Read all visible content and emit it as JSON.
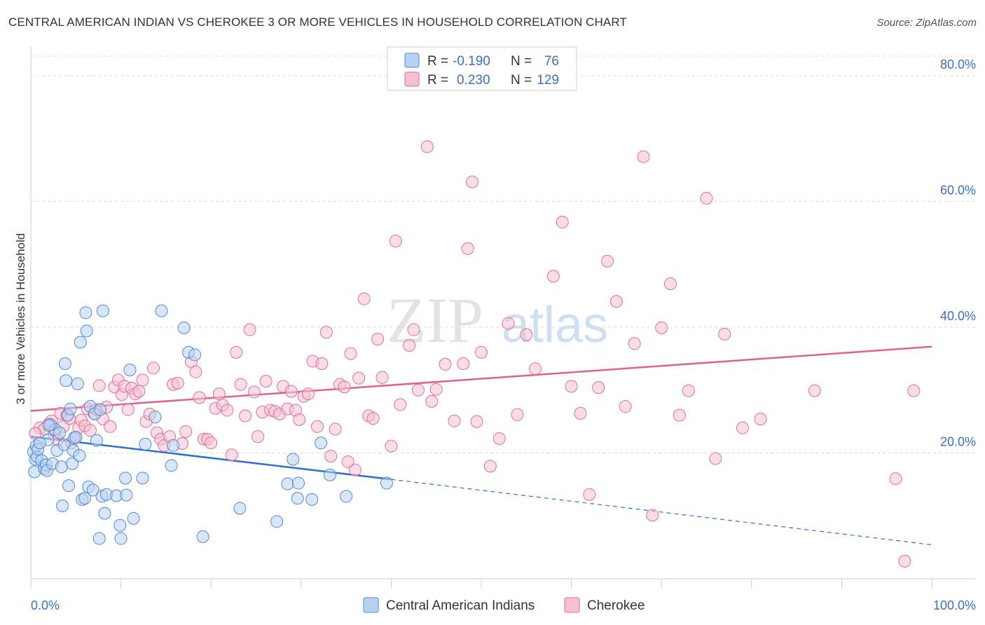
{
  "title": "CENTRAL AMERICAN INDIAN VS CHEROKEE 3 OR MORE VEHICLES IN HOUSEHOLD CORRELATION CHART",
  "source": "Source: ZipAtlas.com",
  "watermark": {
    "zip": "ZIP",
    "atlas": "atlas"
  },
  "colors": {
    "blue": "#4f8ad6",
    "blue_fill": "#b9d1f1",
    "blue_line": "#2e6fd0",
    "pink": "#e06d93",
    "pink_fill": "#f6c1d2",
    "pink_line": "#e0628c",
    "axis_text": "#3a6fc4",
    "grid": "#dddddd"
  },
  "legend": {
    "rows": [
      {
        "r_label": "R =",
        "r_value": "-0.190",
        "n_label": "N =",
        "n_value": "76"
      },
      {
        "r_label": "R =",
        "r_value": "0.230",
        "n_label": "N =",
        "n_value": "129"
      }
    ]
  },
  "bottom_legend": [
    "Central American Indians",
    "Cherokee"
  ],
  "chart_data": {
    "type": "scatter",
    "title": "CENTRAL AMERICAN INDIAN VS CHEROKEE 3 OR MORE VEHICLES IN HOUSEHOLD CORRELATION CHART",
    "xlabel": "",
    "ylabel": "3 or more Vehicles in Household",
    "xlim": [
      0,
      100
    ],
    "ylim": [
      0,
      84
    ],
    "x_tick_labels": [
      "0.0%",
      "100.0%"
    ],
    "y_ticks": [
      20,
      40,
      60,
      80
    ],
    "y_tick_labels": [
      "20.0%",
      "40.0%",
      "60.0%",
      "80.0%"
    ],
    "grid": true,
    "series": [
      {
        "name": "Central American Indians",
        "trend": {
          "x0": 0,
          "y0": 22.6,
          "x1": 40,
          "y1": 15.8,
          "x_end": 100,
          "y_end": 5.4
        },
        "points": [
          [
            0.3,
            20.2
          ],
          [
            0.4,
            17.0
          ],
          [
            0.5,
            19.0
          ],
          [
            0.6,
            21.1
          ],
          [
            0.7,
            19.4
          ],
          [
            0.8,
            20.6
          ],
          [
            1.2,
            18.8
          ],
          [
            1.5,
            17.5
          ],
          [
            1.7,
            18.1
          ],
          [
            1.8,
            17.2
          ],
          [
            1.9,
            22.1
          ],
          [
            2.2,
            24.5
          ],
          [
            2.4,
            18.3
          ],
          [
            2.7,
            23.7
          ],
          [
            2.9,
            20.4
          ],
          [
            3.2,
            23.2
          ],
          [
            3.4,
            17.8
          ],
          [
            3.5,
            11.6
          ],
          [
            3.7,
            21.3
          ],
          [
            3.8,
            34.2
          ],
          [
            3.9,
            31.5
          ],
          [
            4.1,
            26.0
          ],
          [
            4.2,
            14.8
          ],
          [
            4.4,
            27.0
          ],
          [
            4.6,
            18.3
          ],
          [
            4.7,
            20.4
          ],
          [
            4.8,
            22.4
          ],
          [
            5.0,
            22.5
          ],
          [
            5.2,
            31.0
          ],
          [
            5.4,
            19.6
          ],
          [
            5.5,
            37.6
          ],
          [
            5.7,
            12.6
          ],
          [
            6.0,
            12.8
          ],
          [
            6.1,
            42.3
          ],
          [
            6.2,
            39.4
          ],
          [
            6.4,
            14.6
          ],
          [
            6.6,
            27.4
          ],
          [
            6.9,
            14.1
          ],
          [
            7.1,
            26.2
          ],
          [
            7.3,
            22.0
          ],
          [
            7.6,
            6.4
          ],
          [
            7.7,
            26.9
          ],
          [
            7.9,
            13.1
          ],
          [
            8.0,
            42.6
          ],
          [
            8.2,
            10.4
          ],
          [
            8.4,
            13.4
          ],
          [
            9.5,
            13.2
          ],
          [
            9.9,
            8.5
          ],
          [
            10.0,
            6.4
          ],
          [
            10.5,
            16.0
          ],
          [
            10.6,
            13.3
          ],
          [
            11.0,
            33.2
          ],
          [
            11.4,
            9.6
          ],
          [
            12.4,
            16.0
          ],
          [
            12.7,
            21.4
          ],
          [
            13.8,
            25.7
          ],
          [
            14.5,
            42.6
          ],
          [
            15.6,
            18.0
          ],
          [
            15.8,
            21.2
          ],
          [
            17.0,
            39.9
          ],
          [
            17.5,
            36.0
          ],
          [
            18.2,
            35.6
          ],
          [
            19.1,
            6.7
          ],
          [
            23.2,
            11.2
          ],
          [
            27.3,
            9.1
          ],
          [
            28.5,
            15.1
          ],
          [
            29.1,
            19.0
          ],
          [
            29.6,
            12.8
          ],
          [
            29.7,
            15.2
          ],
          [
            31.2,
            12.6
          ],
          [
            32.2,
            21.6
          ],
          [
            33.2,
            16.5
          ],
          [
            35.0,
            13.1
          ],
          [
            39.5,
            15.2
          ],
          [
            1.0,
            21.6
          ],
          [
            2.0,
            24.4
          ]
        ]
      },
      {
        "name": "Cherokee",
        "trend": {
          "x0": 0,
          "y0": 26.7,
          "x1": 100,
          "y1": 36.9
        },
        "points": [
          [
            1.0,
            24.0
          ],
          [
            1.5,
            23.8
          ],
          [
            2.0,
            24.6
          ],
          [
            2.3,
            25.1
          ],
          [
            2.6,
            23.0
          ],
          [
            3.0,
            22.1
          ],
          [
            3.3,
            26.3
          ],
          [
            3.6,
            24.2
          ],
          [
            4.0,
            26.0
          ],
          [
            4.3,
            25.5
          ],
          [
            4.5,
            21.6
          ],
          [
            5.0,
            22.5
          ],
          [
            5.3,
            24.0
          ],
          [
            5.6,
            25.2
          ],
          [
            6.0,
            24.3
          ],
          [
            6.3,
            27.0
          ],
          [
            6.6,
            23.6
          ],
          [
            7.0,
            26.3
          ],
          [
            7.3,
            26.9
          ],
          [
            7.6,
            30.7
          ],
          [
            8.0,
            25.4
          ],
          [
            8.4,
            27.3
          ],
          [
            8.8,
            24.2
          ],
          [
            9.3,
            30.5
          ],
          [
            9.7,
            31.6
          ],
          [
            10.1,
            29.3
          ],
          [
            10.4,
            30.6
          ],
          [
            10.8,
            26.9
          ],
          [
            11.2,
            30.3
          ],
          [
            11.6,
            29.4
          ],
          [
            12.0,
            29.8
          ],
          [
            12.4,
            31.6
          ],
          [
            12.8,
            25.0
          ],
          [
            13.2,
            26.2
          ],
          [
            13.6,
            33.5
          ],
          [
            14.0,
            23.2
          ],
          [
            14.4,
            22.2
          ],
          [
            14.8,
            21.2
          ],
          [
            15.4,
            22.6
          ],
          [
            15.8,
            30.9
          ],
          [
            16.3,
            31.1
          ],
          [
            16.8,
            21.5
          ],
          [
            17.2,
            23.4
          ],
          [
            17.8,
            34.5
          ],
          [
            18.3,
            32.9
          ],
          [
            18.7,
            28.8
          ],
          [
            19.2,
            22.2
          ],
          [
            19.6,
            22.2
          ],
          [
            20.0,
            21.6
          ],
          [
            20.5,
            27.1
          ],
          [
            20.9,
            29.4
          ],
          [
            21.3,
            27.6
          ],
          [
            21.8,
            26.8
          ],
          [
            22.3,
            19.7
          ],
          [
            22.8,
            36.0
          ],
          [
            23.3,
            30.9
          ],
          [
            23.8,
            25.9
          ],
          [
            24.3,
            39.6
          ],
          [
            24.8,
            29.7
          ],
          [
            25.2,
            22.6
          ],
          [
            25.7,
            26.5
          ],
          [
            26.1,
            31.4
          ],
          [
            26.6,
            26.8
          ],
          [
            27.1,
            26.6
          ],
          [
            27.6,
            26.2
          ],
          [
            28.0,
            30.6
          ],
          [
            28.5,
            27.0
          ],
          [
            28.9,
            29.8
          ],
          [
            29.4,
            26.8
          ],
          [
            29.8,
            25.3
          ],
          [
            30.3,
            29.0
          ],
          [
            30.8,
            29.4
          ],
          [
            31.3,
            34.6
          ],
          [
            31.8,
            24.2
          ],
          [
            32.3,
            34.2
          ],
          [
            32.8,
            39.2
          ],
          [
            33.3,
            19.5
          ],
          [
            33.8,
            23.8
          ],
          [
            34.3,
            30.9
          ],
          [
            34.8,
            30.5
          ],
          [
            35.2,
            18.6
          ],
          [
            35.5,
            35.8
          ],
          [
            36.0,
            17.3
          ],
          [
            36.4,
            31.9
          ],
          [
            37.0,
            44.5
          ],
          [
            37.5,
            25.9
          ],
          [
            38.0,
            25.5
          ],
          [
            38.5,
            38.1
          ],
          [
            39.0,
            32.0
          ],
          [
            40.0,
            21.1
          ],
          [
            40.5,
            53.7
          ],
          [
            41.0,
            27.7
          ],
          [
            42.0,
            37.1
          ],
          [
            42.5,
            39.6
          ],
          [
            43.0,
            30.0
          ],
          [
            44.0,
            68.7
          ],
          [
            44.5,
            28.2
          ],
          [
            45.0,
            30.1
          ],
          [
            46.0,
            34.1
          ],
          [
            47.0,
            25.1
          ],
          [
            48.0,
            34.2
          ],
          [
            48.5,
            52.5
          ],
          [
            49.0,
            63.1
          ],
          [
            49.5,
            25.0
          ],
          [
            50.0,
            36.0
          ],
          [
            51.0,
            17.9
          ],
          [
            52.0,
            22.3
          ],
          [
            53.0,
            40.6
          ],
          [
            54.0,
            26.1
          ],
          [
            55.0,
            38.8
          ],
          [
            56.0,
            33.4
          ],
          [
            58.0,
            48.1
          ],
          [
            59.0,
            56.7
          ],
          [
            60.0,
            30.6
          ],
          [
            61.0,
            26.3
          ],
          [
            62.0,
            13.4
          ],
          [
            63.0,
            30.4
          ],
          [
            64.0,
            50.5
          ],
          [
            65.0,
            44.1
          ],
          [
            66.0,
            27.4
          ],
          [
            67.0,
            37.4
          ],
          [
            68.0,
            67.1
          ],
          [
            69.0,
            10.1
          ],
          [
            70.0,
            39.9
          ],
          [
            71.0,
            46.9
          ],
          [
            72.0,
            26.0
          ],
          [
            73.0,
            29.9
          ],
          [
            75.0,
            60.5
          ],
          [
            76.0,
            19.1
          ],
          [
            77.0,
            38.9
          ],
          [
            79.0,
            24.0
          ],
          [
            81.0,
            25.4
          ],
          [
            87.0,
            29.9
          ],
          [
            97.0,
            2.8
          ],
          [
            98.0,
            29.9
          ],
          [
            96.0,
            15.9
          ],
          [
            0.5,
            23.1
          ]
        ]
      }
    ]
  }
}
